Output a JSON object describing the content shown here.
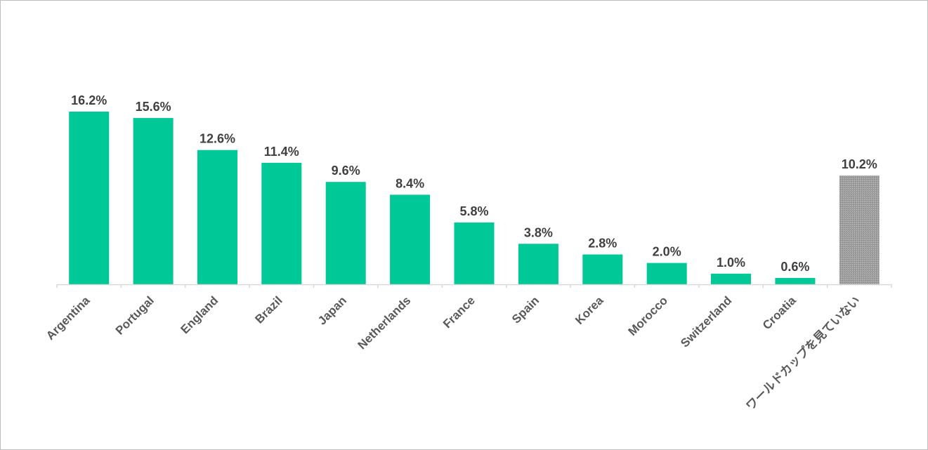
{
  "chart_data": {
    "type": "bar",
    "categories": [
      "Argentina",
      "Portugal",
      "England",
      "Brazil",
      "Japan",
      "Netherlands",
      "France",
      "Spain",
      "Korea",
      "Morocco",
      "Switzerland",
      "Croatia",
      "ワールドカップを見ていない"
    ],
    "values": [
      16.2,
      15.6,
      12.6,
      11.4,
      9.6,
      8.4,
      5.8,
      3.8,
      2.8,
      2.0,
      1.0,
      0.6,
      10.2
    ],
    "data_labels": [
      "16.2%",
      "15.6%",
      "12.6%",
      "11.4%",
      "9.6%",
      "8.4%",
      "5.8%",
      "3.8%",
      "2.8%",
      "2.0%",
      "1.0%",
      "0.6%",
      "10.2%"
    ],
    "ylim": [
      0,
      16.2
    ],
    "grid": false,
    "legend": "none",
    "colors": {
      "bar": "#00c896",
      "highlight_bar": "#a6a6a6",
      "axis": "#d9d9d9"
    },
    "highlight_categories": [
      "ワールドカップを見ていない"
    ]
  }
}
